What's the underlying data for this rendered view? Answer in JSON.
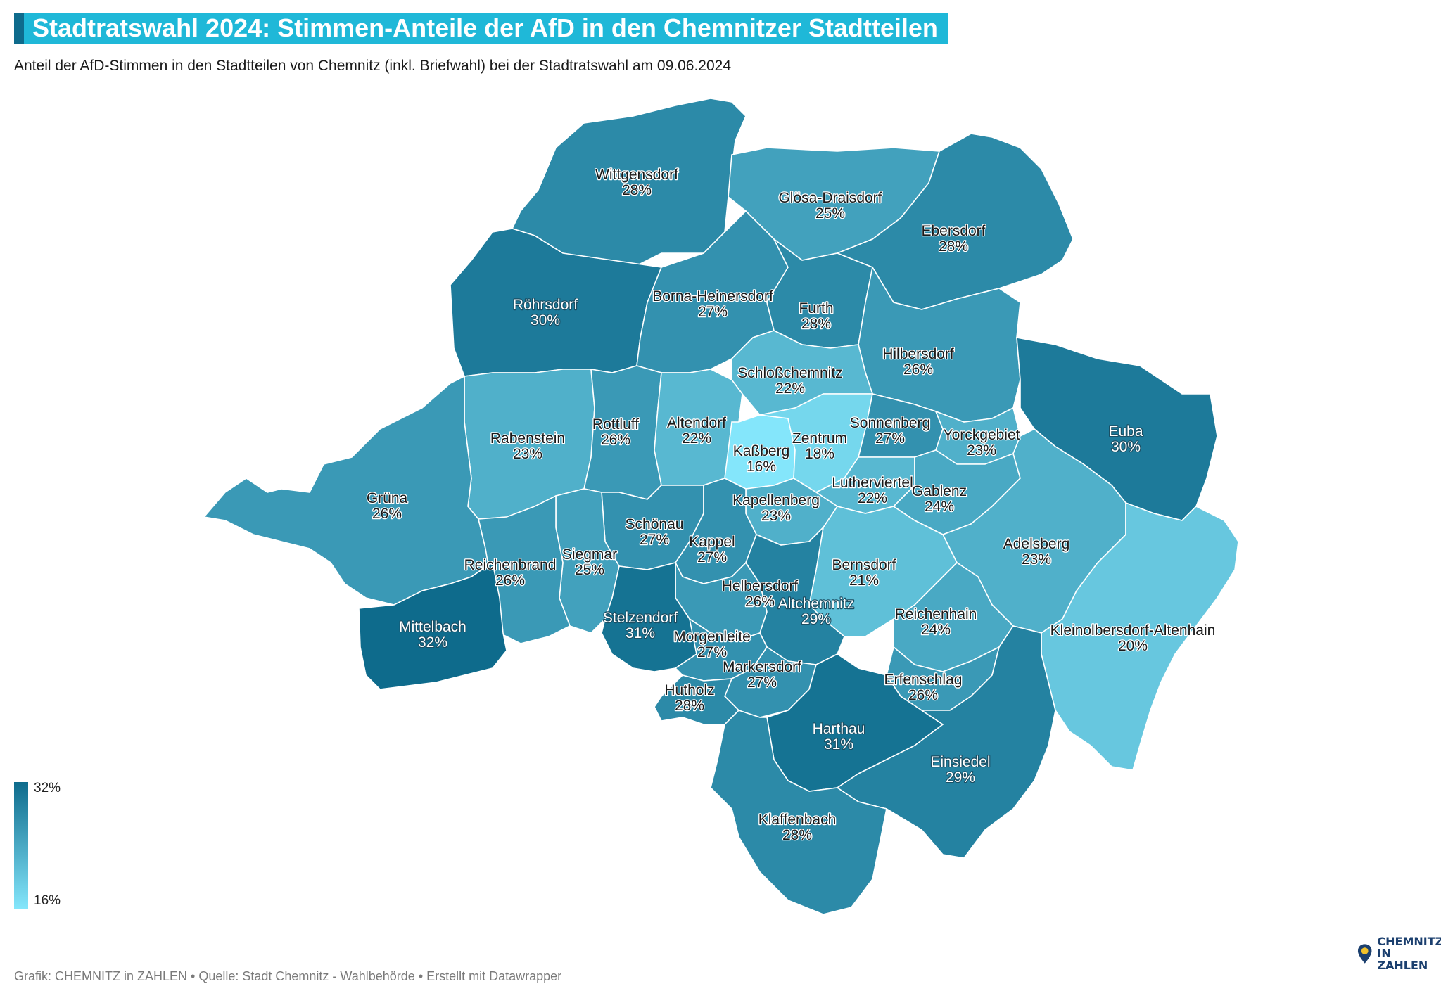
{
  "header": {
    "title": "Stadtratswahl 2024: Stimmen-Anteile der AfD in den Chemnitzer Stadtteilen",
    "subtitle": "Anteil der AfD-Stimmen in den Stadtteilen von Chemnitz (inkl. Briefwahl) bei der Stadtratswahl am 09.06.2024"
  },
  "legend": {
    "max_label": "32%",
    "min_label": "16%",
    "max_value": 32,
    "min_value": 16,
    "color_max": "#0e6b8c",
    "color_min": "#84e6fb"
  },
  "districts": [
    {
      "name": "Wittgensdorf",
      "pct": 28,
      "label": "28%"
    },
    {
      "name": "Glösa-Draisdorf",
      "pct": 25,
      "label": "25%"
    },
    {
      "name": "Ebersdorf",
      "pct": 28,
      "label": "28%"
    },
    {
      "name": "Röhrsdorf",
      "pct": 30,
      "label": "30%"
    },
    {
      "name": "Borna-Heinersdorf",
      "pct": 27,
      "label": "27%"
    },
    {
      "name": "Furth",
      "pct": 28,
      "label": "28%"
    },
    {
      "name": "Hilbersdorf",
      "pct": 26,
      "label": "26%"
    },
    {
      "name": "Schloßchemnitz",
      "pct": 22,
      "label": "22%"
    },
    {
      "name": "Euba",
      "pct": 30,
      "label": "30%"
    },
    {
      "name": "Rabenstein",
      "pct": 23,
      "label": "23%"
    },
    {
      "name": "Rottluff",
      "pct": 26,
      "label": "26%"
    },
    {
      "name": "Altendorf",
      "pct": 22,
      "label": "22%"
    },
    {
      "name": "Kaßberg",
      "pct": 16,
      "label": "16%"
    },
    {
      "name": "Zentrum",
      "pct": 18,
      "label": "18%"
    },
    {
      "name": "Sonnenberg",
      "pct": 27,
      "label": "27%"
    },
    {
      "name": "Yorckgebiet",
      "pct": 23,
      "label": "23%"
    },
    {
      "name": "Grüna",
      "pct": 26,
      "label": "26%"
    },
    {
      "name": "Lutherviertel",
      "pct": 22,
      "label": "22%"
    },
    {
      "name": "Gablenz",
      "pct": 24,
      "label": "24%"
    },
    {
      "name": "Kapellenberg",
      "pct": 23,
      "label": "23%"
    },
    {
      "name": "Schönau",
      "pct": 27,
      "label": "27%"
    },
    {
      "name": "Kappel",
      "pct": 27,
      "label": "27%"
    },
    {
      "name": "Adelsberg",
      "pct": 23,
      "label": "23%"
    },
    {
      "name": "Siegmar",
      "pct": 25,
      "label": "25%"
    },
    {
      "name": "Reichenbrand",
      "pct": 26,
      "label": "26%"
    },
    {
      "name": "Bernsdorf",
      "pct": 21,
      "label": "21%"
    },
    {
      "name": "Helbersdorf",
      "pct": 26,
      "label": "26%"
    },
    {
      "name": "Altchemnitz",
      "pct": 29,
      "label": "29%"
    },
    {
      "name": "Reichenhain",
      "pct": 24,
      "label": "24%"
    },
    {
      "name": "Kleinolbersdorf-Altenhain",
      "pct": 20,
      "label": "20%"
    },
    {
      "name": "Mittelbach",
      "pct": 32,
      "label": "32%"
    },
    {
      "name": "Stelzendorf",
      "pct": 31,
      "label": "31%"
    },
    {
      "name": "Morgenleite",
      "pct": 27,
      "label": "27%"
    },
    {
      "name": "Markersdorf",
      "pct": 27,
      "label": "27%"
    },
    {
      "name": "Erfenschlag",
      "pct": 26,
      "label": "26%"
    },
    {
      "name": "Hutholz",
      "pct": 28,
      "label": "28%"
    },
    {
      "name": "Harthau",
      "pct": 31,
      "label": "31%"
    },
    {
      "name": "Einsiedel",
      "pct": 29,
      "label": "29%"
    },
    {
      "name": "Klaffenbach",
      "pct": 28,
      "label": "28%"
    }
  ],
  "footer": {
    "text": "Grafik: CHEMNITZ in ZAHLEN • Quelle: Stadt Chemnitz - Wahlbehörde • Erstellt mit Datawrapper"
  },
  "logo": {
    "line1": "CHEMNITZ",
    "line2": "IN ZAHLEN",
    "icon": "map-pin-icon"
  }
}
